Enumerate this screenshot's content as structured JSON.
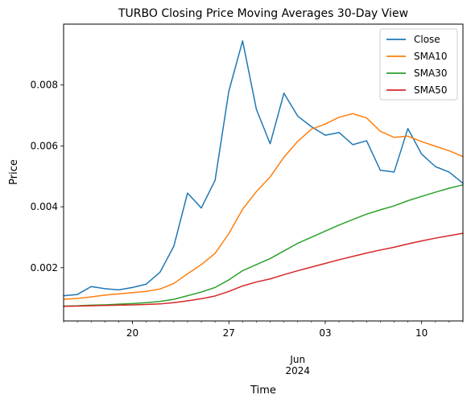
{
  "chart_data": {
    "type": "line",
    "title": "TURBO Closing Price Moving Averages 30-Day View",
    "xlabel": "Time",
    "ylabel": "Price",
    "x": [
      "2024-05-15",
      "2024-05-16",
      "2024-05-17",
      "2024-05-18",
      "2024-05-19",
      "2024-05-20",
      "2024-05-21",
      "2024-05-22",
      "2024-05-23",
      "2024-05-24",
      "2024-05-25",
      "2024-05-26",
      "2024-05-27",
      "2024-05-28",
      "2024-05-29",
      "2024-05-30",
      "2024-05-31",
      "2024-06-01",
      "2024-06-02",
      "2024-06-03",
      "2024-06-04",
      "2024-06-05",
      "2024-06-06",
      "2024-06-07",
      "2024-06-08",
      "2024-06-09",
      "2024-06-10",
      "2024-06-11",
      "2024-06-12",
      "2024-06-13"
    ],
    "xlim": [
      "2024-05-15",
      "2024-06-13"
    ],
    "ylim": [
      0.00025,
      0.01
    ],
    "x_ticks_major": [
      {
        "date": "2024-05-20",
        "label": "20"
      },
      {
        "date": "2024-05-27",
        "label": "27"
      },
      {
        "date": "2024-06-03",
        "label": "03"
      },
      {
        "date": "2024-06-10",
        "label": "10"
      }
    ],
    "x_month_label": "Jun\n2024",
    "y_ticks": [
      {
        "value": 0.002,
        "label": "0.002"
      },
      {
        "value": 0.004,
        "label": "0.004"
      },
      {
        "value": 0.006,
        "label": "0.006"
      },
      {
        "value": 0.008,
        "label": "0.008"
      }
    ],
    "grid": false,
    "legend_position": "top-right",
    "series": [
      {
        "name": "Close",
        "color": "#1f77b4",
        "values": [
          0.00108,
          0.00112,
          0.00138,
          0.00131,
          0.00127,
          0.00135,
          0.00146,
          0.00185,
          0.0027,
          0.00445,
          0.00396,
          0.00487,
          0.0078,
          0.00945,
          0.0072,
          0.00607,
          0.00773,
          0.00698,
          0.00663,
          0.00635,
          0.00644,
          0.00604,
          0.00617,
          0.0052,
          0.00514,
          0.00657,
          0.00573,
          0.00532,
          0.00514,
          0.00477
        ]
      },
      {
        "name": "SMA10",
        "color": "#ff7f0e",
        "values": [
          0.00096,
          0.00099,
          0.00104,
          0.0011,
          0.00114,
          0.00118,
          0.00122,
          0.0013,
          0.00148,
          0.0018,
          0.0021,
          0.00247,
          0.00312,
          0.00392,
          0.0045,
          0.00498,
          0.00563,
          0.00615,
          0.00655,
          0.00672,
          0.00694,
          0.00706,
          0.00692,
          0.00648,
          0.00628,
          0.00632,
          0.00614,
          0.00599,
          0.00584,
          0.00565
        ]
      },
      {
        "name": "SMA30",
        "color": "#2ca02c",
        "values": [
          0.00074,
          0.00075,
          0.00077,
          0.00078,
          0.0008,
          0.00082,
          0.00085,
          0.00089,
          0.00096,
          0.00108,
          0.0012,
          0.00135,
          0.0016,
          0.0019,
          0.0021,
          0.0023,
          0.00255,
          0.0028,
          0.003,
          0.0032,
          0.0034,
          0.00358,
          0.00376,
          0.0039,
          0.00403,
          0.0042,
          0.00434,
          0.00448,
          0.00461,
          0.00472
        ]
      },
      {
        "name": "SMA50",
        "color": "#d62728",
        "values": [
          0.00073,
          0.00074,
          0.00075,
          0.00076,
          0.00077,
          0.00078,
          0.00079,
          0.00081,
          0.00085,
          0.00091,
          0.00098,
          0.00107,
          0.00122,
          0.0014,
          0.00153,
          0.00163,
          0.00177,
          0.0019,
          0.00202,
          0.00214,
          0.00226,
          0.00237,
          0.00248,
          0.00258,
          0.00267,
          0.00278,
          0.00288,
          0.00297,
          0.00305,
          0.00313
        ]
      }
    ]
  }
}
